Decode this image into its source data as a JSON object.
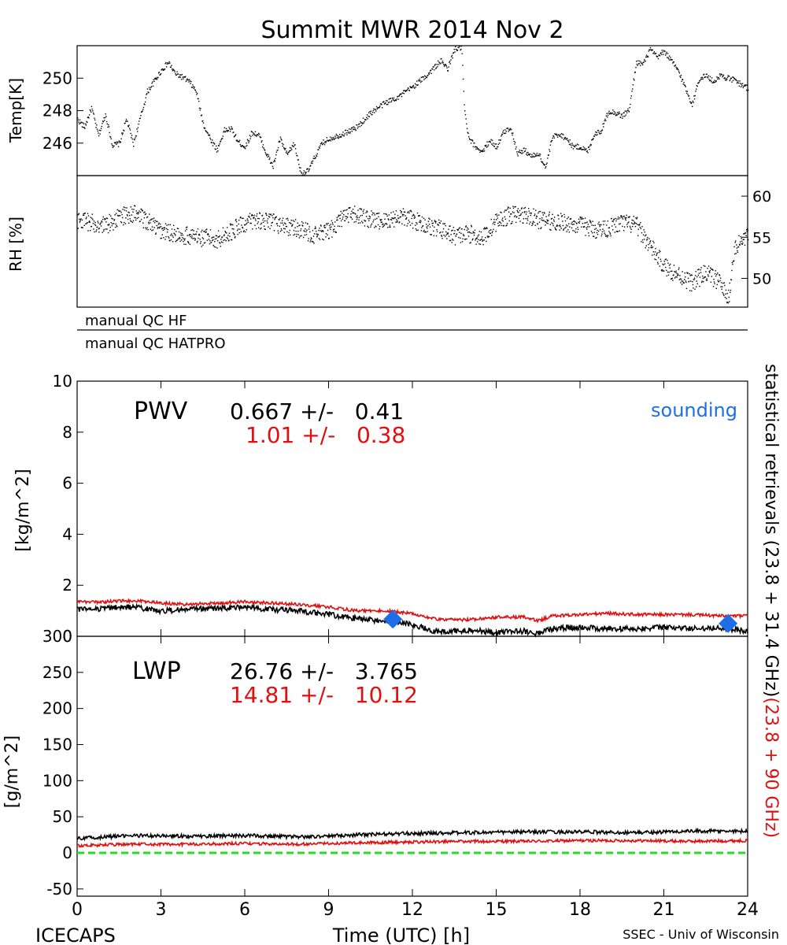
{
  "title": "Summit MWR 2014 Nov  2",
  "footer": {
    "left": "ICECAPS",
    "center": "Time (UTC) [h]",
    "right": "SSEC - Univ of Wisconsin"
  },
  "right_note": {
    "black_part": "statistical retrievals (23.8 + 31.4 GHz)",
    "red_part": "(23.8 + 90 GHz)"
  },
  "qc_labels": [
    "manual QC HF",
    "manual QC HATPRO"
  ],
  "colors": {
    "black_series": "#000000",
    "red_series": "#e01010",
    "sounding": "#1e6ee8",
    "zero_line": "#22dd22"
  },
  "chart_data": [
    {
      "id": "temp",
      "type": "scatter",
      "ylabel": "Temp[K]",
      "xlim": [
        0,
        24
      ],
      "ylim": [
        244,
        252
      ],
      "yticks": [
        246,
        248,
        250
      ],
      "y_axis_side": "left",
      "series": [
        {
          "x": [
            0.0,
            0.25,
            0.5,
            0.75,
            1.0,
            1.25,
            1.5,
            1.75,
            2.0,
            2.5,
            3.0,
            3.25,
            3.5,
            3.75,
            4.0,
            4.25,
            4.5,
            4.75,
            5.0,
            5.25,
            5.5,
            5.75,
            6.0,
            6.25,
            6.5,
            6.75,
            7.0,
            7.25,
            7.5,
            7.75,
            8.0,
            8.25,
            8.5,
            8.75,
            9.0,
            9.5,
            10.0,
            10.5,
            11.0,
            11.5,
            12.0,
            12.5,
            13.0,
            13.25,
            13.5,
            13.75,
            13.85,
            14.0,
            14.25,
            14.5,
            14.75,
            15.0,
            15.25,
            15.5,
            15.75,
            16.0,
            16.25,
            16.5,
            16.75,
            17.0,
            17.25,
            17.5,
            17.75,
            18.0,
            18.25,
            18.5,
            18.75,
            19.0,
            19.25,
            19.5,
            19.75,
            20.0,
            20.25,
            20.5,
            20.75,
            21.0,
            21.5,
            22.0,
            22.25,
            22.5,
            22.75,
            23.0,
            23.5,
            24.0
          ],
          "y": [
            247.5,
            247.0,
            248.2,
            246.5,
            247.8,
            245.9,
            246.0,
            247.5,
            246.0,
            249.2,
            250.5,
            251.0,
            250.3,
            250.1,
            249.8,
            249.2,
            247.2,
            246.3,
            245.6,
            246.8,
            246.9,
            246.1,
            245.8,
            246.7,
            246.5,
            245.4,
            244.6,
            246.3,
            245.3,
            246.0,
            244.2,
            244.3,
            245.2,
            246.0,
            246.3,
            246.6,
            247.0,
            247.9,
            248.5,
            248.9,
            249.5,
            250.2,
            251.1,
            250.6,
            251.8,
            251.9,
            248.0,
            246.3,
            245.8,
            245.5,
            246.2,
            245.8,
            246.7,
            247.0,
            245.4,
            245.6,
            245.2,
            245.4,
            244.5,
            246.4,
            246.6,
            246.3,
            245.8,
            245.8,
            245.5,
            246.6,
            246.8,
            248.0,
            247.9,
            247.7,
            248.1,
            251.0,
            250.9,
            251.8,
            251.3,
            251.7,
            250.5,
            248.4,
            250.0,
            250.2,
            249.8,
            250.2,
            249.9,
            249.4
          ]
        }
      ]
    },
    {
      "id": "rh",
      "type": "scatter",
      "ylabel": "RH [%]",
      "xlim": [
        0,
        24
      ],
      "ylim": [
        46.5,
        62.5
      ],
      "yticks": [
        50,
        55,
        60
      ],
      "y_axis_side": "right",
      "series": [
        {
          "x": [
            0.0,
            0.5,
            1.0,
            1.5,
            2.0,
            2.5,
            3.0,
            3.5,
            4.0,
            4.5,
            5.0,
            5.5,
            6.0,
            6.5,
            7.0,
            7.5,
            8.0,
            8.5,
            9.0,
            9.5,
            10.0,
            10.5,
            11.0,
            11.5,
            12.0,
            12.5,
            13.0,
            13.5,
            14.0,
            14.5,
            15.0,
            15.5,
            16.0,
            16.5,
            17.0,
            17.5,
            18.0,
            18.5,
            19.0,
            19.5,
            20.0,
            20.5,
            21.0,
            21.5,
            22.0,
            22.5,
            23.0,
            23.3,
            23.5,
            24.0
          ],
          "y": [
            57.2,
            56.8,
            56.5,
            57.5,
            58.0,
            57.0,
            55.8,
            55.5,
            55.2,
            55.0,
            54.8,
            55.8,
            56.8,
            57.2,
            56.8,
            56.4,
            56.0,
            55.3,
            55.8,
            57.5,
            57.8,
            57.2,
            57.0,
            57.6,
            57.2,
            56.5,
            56.0,
            55.2,
            55.5,
            55.0,
            57.0,
            57.8,
            57.8,
            57.2,
            57.0,
            56.8,
            56.5,
            56.0,
            56.2,
            56.8,
            56.5,
            54.0,
            51.5,
            50.5,
            49.5,
            50.8,
            49.5,
            47.5,
            53.5,
            55.5
          ]
        }
      ]
    },
    {
      "id": "pwv",
      "type": "line",
      "ylabel": "[kg/m^2]",
      "label": "PWV",
      "xlim": [
        0,
        24
      ],
      "ylim": [
        0,
        10
      ],
      "yticks": [
        0,
        2,
        4,
        6,
        8,
        10
      ],
      "xticks": [
        0,
        3,
        6,
        9,
        12,
        15,
        18,
        21,
        24
      ],
      "stats": [
        {
          "text": "0.667 +/-   0.41",
          "color": "black"
        },
        {
          "text": "1.01 +/-   0.38",
          "color": "red"
        }
      ],
      "legend": {
        "text": "sounding",
        "position": "top-right"
      },
      "series": [
        {
          "color": "black",
          "x": [
            0,
            1,
            2,
            3,
            4,
            5,
            6,
            7,
            8,
            9,
            10,
            11,
            11.5,
            12,
            12.5,
            13,
            14,
            15,
            16,
            16.5,
            17,
            18,
            19,
            20,
            21,
            22,
            23,
            24
          ],
          "y": [
            1.05,
            1.1,
            1.15,
            1.0,
            1.05,
            1.1,
            1.15,
            1.05,
            1.0,
            0.85,
            0.7,
            0.6,
            0.55,
            0.45,
            0.3,
            0.15,
            0.25,
            0.15,
            0.2,
            0.1,
            0.3,
            0.35,
            0.3,
            0.3,
            0.35,
            0.3,
            0.35,
            0.2
          ]
        },
        {
          "color": "red",
          "x": [
            0,
            1,
            2,
            3,
            4,
            5,
            6,
            7,
            8,
            9,
            10,
            11,
            12,
            12.5,
            13,
            14,
            15,
            16,
            16.5,
            17,
            18,
            19,
            20,
            21,
            22,
            23,
            24
          ],
          "y": [
            1.35,
            1.35,
            1.4,
            1.3,
            1.25,
            1.3,
            1.35,
            1.3,
            1.25,
            1.15,
            1.0,
            1.0,
            0.9,
            0.75,
            0.65,
            0.65,
            0.75,
            0.75,
            0.6,
            0.8,
            0.85,
            0.9,
            0.85,
            0.85,
            0.85,
            0.8,
            0.8
          ]
        }
      ],
      "sounding": [
        {
          "x": 11.3,
          "y": 0.67
        },
        {
          "x": 23.3,
          "y": 0.5
        }
      ]
    },
    {
      "id": "lwp",
      "type": "line",
      "ylabel": "[g/m^2]",
      "label": "LWP",
      "xlim": [
        0,
        24
      ],
      "ylim": [
        -60,
        300
      ],
      "yticks": [
        -50,
        0,
        50,
        100,
        150,
        200,
        250,
        300
      ],
      "xticks": [
        0,
        3,
        6,
        9,
        12,
        15,
        18,
        21,
        24
      ],
      "xticklabels": [
        "0",
        "3",
        "6",
        "9",
        "12",
        "15",
        "18",
        "21",
        "24"
      ],
      "stats": [
        {
          "text": "26.76 +/-   3.765",
          "color": "black"
        },
        {
          "text": "14.81 +/-   10.12",
          "color": "red"
        }
      ],
      "series": [
        {
          "color": "black",
          "x": [
            0,
            2,
            4,
            6,
            8,
            10,
            12,
            14,
            16,
            18,
            20,
            22,
            24
          ],
          "y": [
            20,
            24,
            23,
            24,
            22,
            25,
            27,
            28,
            29,
            29,
            28,
            30,
            30
          ]
        },
        {
          "color": "red",
          "x": [
            0,
            2,
            4,
            6,
            8,
            10,
            12,
            14,
            16,
            18,
            20,
            22,
            24
          ],
          "y": [
            10,
            12,
            12,
            13,
            12,
            14,
            15,
            16,
            16,
            17,
            17,
            16,
            17
          ]
        },
        {
          "color": "green",
          "x": [
            0,
            24
          ],
          "y": [
            0,
            0
          ]
        }
      ]
    }
  ]
}
